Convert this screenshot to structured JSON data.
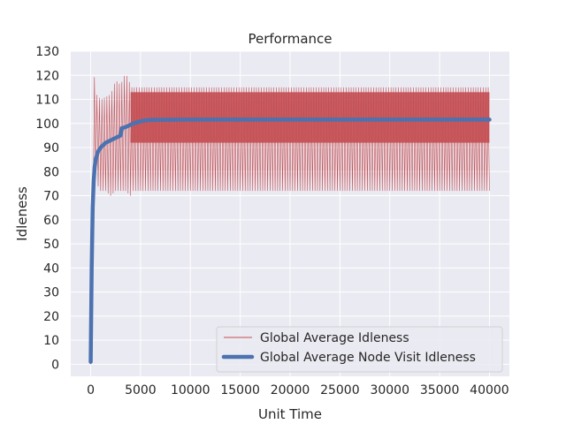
{
  "chart_data": {
    "type": "line",
    "title": "Performance",
    "xlabel": "Unit Time",
    "ylabel": "Idleness",
    "xlim": [
      -2000,
      42000
    ],
    "ylim": [
      -5,
      130
    ],
    "xticks": [
      0,
      5000,
      10000,
      15000,
      20000,
      25000,
      30000,
      35000,
      40000
    ],
    "xtick_labels": [
      "0",
      "5000",
      "10000",
      "15000",
      "20000",
      "25000",
      "30000",
      "35000",
      "40000"
    ],
    "yticks": [
      0,
      10,
      20,
      30,
      40,
      50,
      60,
      70,
      80,
      90,
      100,
      110,
      120,
      130
    ],
    "ytick_labels": [
      "0",
      "10",
      "20",
      "30",
      "40",
      "50",
      "60",
      "70",
      "80",
      "90",
      "100",
      "110",
      "120",
      "130"
    ],
    "grid": true,
    "legend_position": "lower right",
    "colors": {
      "background": "#eaeaf2",
      "grid": "#ffffff",
      "series_1": "#c44e52",
      "series_2": "#4c72b0"
    },
    "series": [
      {
        "name": "Global Average Idleness",
        "style": "thin oscillating line",
        "oscillation": {
          "period": 250,
          "x_range": [
            0,
            40000
          ],
          "early_phase": {
            "x": [
              0,
              200,
              400,
              600,
              1000,
              1500,
              2000,
              2500,
              3000,
              3500,
              4000
            ],
            "low": [
              0,
              60,
              80,
              75,
              72,
              72,
              70,
              72,
              72,
              72,
              70
            ],
            "high": [
              20,
              100,
              122,
              112,
              110,
              111,
              112,
              118,
              116,
              121,
              116
            ]
          },
          "steady_low": 72,
          "steady_high": 115,
          "steady_band": [
            92,
            113
          ]
        }
      },
      {
        "name": "Global Average Node Visit Idleness",
        "style": "thick smooth line",
        "x": [
          0,
          100,
          200,
          300,
          400,
          500,
          700,
          1000,
          1500,
          2000,
          2500,
          3000,
          3100,
          3500,
          4000,
          4500,
          5000,
          5500,
          6000,
          10000,
          20000,
          30000,
          40000
        ],
        "y": [
          1,
          40,
          65,
          76,
          82,
          85,
          88,
          90,
          92,
          93,
          94,
          95,
          98,
          98.5,
          99.5,
          100.3,
          100.9,
          101.3,
          101.5,
          101.6,
          101.6,
          101.6,
          101.6
        ]
      }
    ]
  }
}
